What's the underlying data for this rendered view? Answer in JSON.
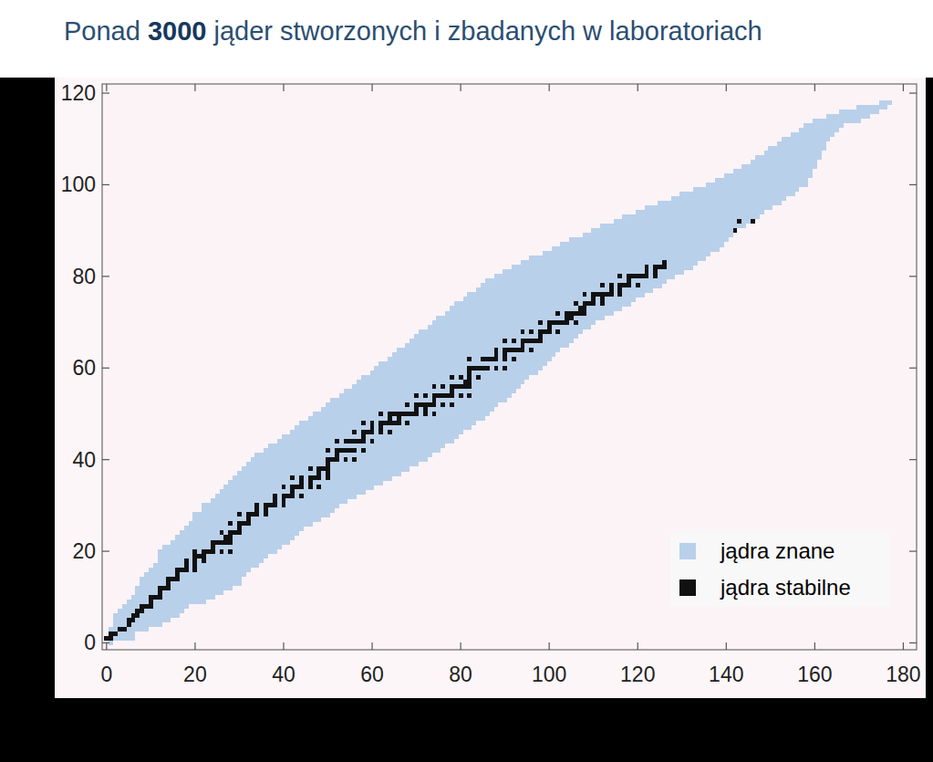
{
  "chart_data": {
    "type": "scatter",
    "title": "Ponad 3000 jąder stworzonych i zbadanych w laboratoriach",
    "xlim": [
      -1,
      183
    ],
    "ylim": [
      -1.5,
      122
    ],
    "xticks": [
      0,
      20,
      40,
      60,
      80,
      100,
      120,
      140,
      160,
      180
    ],
    "yticks": [
      0,
      20,
      40,
      60,
      80,
      100,
      120
    ],
    "grid": false,
    "legend": "lower right",
    "series": [
      {
        "name": "jądra znane",
        "color": "#b9d0ea",
        "type": "range",
        "marker": "square",
        "values": [
          0,
          1,
          2,
          3,
          4,
          5,
          6,
          7,
          8,
          9,
          10,
          11,
          12,
          13,
          14,
          15,
          16,
          17,
          18,
          19,
          20,
          21,
          22,
          23,
          24,
          25,
          26,
          27,
          28,
          29,
          30,
          31,
          32,
          33,
          34,
          35,
          36,
          37,
          38,
          39,
          40,
          41,
          42,
          43,
          44,
          45,
          46,
          47,
          48,
          49,
          50,
          51,
          52,
          53,
          54,
          55,
          56,
          57,
          58,
          59,
          60,
          61,
          62,
          63,
          64,
          65,
          66,
          67,
          68,
          69,
          70,
          71,
          72,
          73,
          74,
          75,
          76,
          77,
          78,
          79,
          80,
          81,
          82,
          83,
          84,
          85,
          86,
          87,
          88,
          89,
          90,
          91,
          92,
          93,
          94,
          95,
          96,
          97,
          98,
          99,
          100,
          101,
          102,
          103,
          104,
          105,
          106,
          107,
          108,
          109,
          110,
          111,
          112,
          113,
          114,
          115,
          116,
          117,
          118
        ],
        "n_min": [
          1,
          0,
          1,
          1,
          2,
          2,
          2,
          3,
          4,
          5,
          6,
          7,
          7,
          8,
          8,
          9,
          10,
          11,
          12,
          12,
          12,
          13,
          15,
          16,
          17,
          18,
          19,
          20,
          20,
          22,
          22,
          24,
          25,
          26,
          27,
          28,
          29,
          30,
          31,
          32,
          33,
          34,
          36,
          37,
          39,
          40,
          42,
          43,
          44,
          46,
          47,
          49,
          50,
          51,
          53,
          54,
          56,
          57,
          58,
          60,
          61,
          62,
          64,
          65,
          66,
          68,
          69,
          70,
          71,
          73,
          74,
          75,
          77,
          78,
          79,
          81,
          82,
          84,
          85,
          86,
          88,
          90,
          92,
          94,
          96,
          99,
          101,
          103,
          105,
          108,
          110,
          112,
          115,
          117,
          120,
          122,
          125,
          128,
          130,
          133,
          136,
          138,
          140,
          142,
          144,
          146,
          147,
          149,
          150,
          152,
          153,
          155,
          157,
          158,
          160,
          163,
          166,
          170,
          175
        ],
        "n_max": [
          1,
          6,
          6,
          9,
          12,
          14,
          16,
          17,
          18,
          22,
          24,
          26,
          28,
          30,
          30,
          31,
          32,
          34,
          35,
          36,
          38,
          39,
          41,
          42,
          43,
          44,
          46,
          48,
          50,
          51,
          52,
          54,
          56,
          58,
          60,
          62,
          64,
          66,
          68,
          70,
          72,
          73,
          75,
          76,
          78,
          79,
          80,
          82,
          83,
          85,
          86,
          87,
          88,
          90,
          91,
          92,
          93,
          94,
          95,
          97,
          98,
          99,
          100,
          101,
          102,
          104,
          105,
          106,
          107,
          109,
          110,
          112,
          114,
          116,
          118,
          119,
          121,
          123,
          125,
          126,
          128,
          130,
          132,
          133,
          135,
          136,
          138,
          139,
          140,
          141,
          142,
          144,
          146,
          147,
          148,
          150,
          152,
          153,
          155,
          156,
          158,
          158,
          159,
          159,
          160,
          160,
          161,
          161,
          162,
          162,
          163,
          164,
          165,
          166,
          170,
          172,
          174,
          176,
          177
        ]
      },
      {
        "name": "jądra stabilne",
        "color": "#111111",
        "type": "scatter",
        "marker": "square",
        "x": [
          0,
          1,
          1,
          2,
          3,
          4,
          5,
          5,
          6,
          6,
          7,
          7,
          8,
          8,
          9,
          10,
          10,
          10,
          11,
          12,
          12,
          12,
          13,
          14,
          14,
          14,
          15,
          16,
          16,
          16,
          17,
          18,
          20,
          18,
          20,
          18,
          20,
          22,
          20,
          21,
          22,
          20,
          22,
          23,
          24,
          26,
          28,
          24,
          24,
          25,
          26,
          27,
          28,
          27,
          28,
          26,
          28,
          29,
          30,
          30,
          28,
          30,
          31,
          32,
          32,
          30,
          32,
          33,
          34,
          36,
          34,
          36,
          34,
          36,
          37,
          38,
          40,
          38,
          40,
          38,
          40,
          41,
          42,
          44,
          42,
          40,
          42,
          43,
          44,
          46,
          48,
          44,
          46,
          42,
          44,
          46,
          47,
          48,
          50,
          48,
          50,
          46,
          48,
          49,
          50,
          50,
          50,
          51,
          52,
          54,
          56,
          52,
          50,
          52,
          53,
          54,
          55,
          56,
          58,
          52,
          54,
          55,
          56,
          57,
          58,
          60,
          58,
          56,
          58,
          59,
          60,
          62,
          64,
          60,
          62,
          58,
          60,
          62,
          63,
          64,
          65,
          66,
          68,
          64,
          66,
          62,
          64,
          65,
          66,
          67,
          68,
          69,
          70,
          72,
          74,
          70,
          72,
          68,
          70,
          71,
          72,
          73,
          74,
          76,
          78,
          74,
          70,
          72,
          74,
          75,
          76,
          77,
          78,
          80,
          82,
          78,
          74,
          76,
          78,
          79,
          80,
          81,
          82,
          81,
          82,
          78,
          80,
          82,
          84,
          82,
          82,
          83,
          84,
          85,
          86,
          88,
          90,
          82,
          85,
          86,
          87,
          88,
          90,
          92,
          88,
          90,
          88,
          90,
          91,
          92,
          93,
          94,
          96,
          94,
          90,
          92,
          94,
          95,
          96,
          97,
          98,
          98,
          94,
          96,
          98,
          99,
          100,
          102,
          100,
          98,
          100,
          101,
          102,
          103,
          104,
          106,
          104,
          105,
          102,
          104,
          105,
          106,
          107,
          108,
          107,
          108,
          106,
          108,
          109,
          110,
          112,
          110,
          112,
          108,
          110,
          111,
          112,
          113,
          114,
          116,
          114,
          116,
          112,
          114,
          116,
          117,
          118,
          120,
          118,
          116,
          118,
          119,
          120,
          121,
          122,
          124,
          122,
          124,
          122,
          124,
          125,
          126,
          126,
          142,
          143,
          146
        ],
        "values": [
          1,
          1,
          2,
          2,
          3,
          3,
          4,
          5,
          5,
          6,
          6,
          7,
          7,
          8,
          8,
          8,
          9,
          10,
          10,
          10,
          11,
          12,
          12,
          12,
          13,
          14,
          14,
          14,
          15,
          16,
          16,
          16,
          16,
          17,
          17,
          18,
          18,
          18,
          19,
          19,
          19,
          20,
          20,
          20,
          20,
          20,
          20,
          21,
          22,
          22,
          22,
          22,
          22,
          23,
          23,
          24,
          24,
          24,
          24,
          25,
          26,
          26,
          26,
          26,
          27,
          28,
          28,
          28,
          28,
          28,
          29,
          29,
          30,
          30,
          30,
          30,
          30,
          31,
          31,
          32,
          32,
          32,
          32,
          32,
          33,
          34,
          34,
          34,
          34,
          34,
          34,
          35,
          35,
          36,
          36,
          36,
          36,
          36,
          36,
          37,
          37,
          38,
          38,
          38,
          38,
          39,
          40,
          40,
          40,
          40,
          40,
          41,
          42,
          42,
          42,
          42,
          42,
          42,
          42,
          44,
          44,
          44,
          44,
          44,
          44,
          44,
          45,
          46,
          46,
          46,
          46,
          46,
          46,
          47,
          47,
          48,
          48,
          48,
          48,
          48,
          48,
          48,
          48,
          49,
          49,
          50,
          50,
          50,
          50,
          50,
          50,
          50,
          50,
          50,
          50,
          51,
          51,
          52,
          52,
          52,
          52,
          52,
          52,
          52,
          52,
          53,
          54,
          54,
          54,
          54,
          54,
          54,
          54,
          54,
          54,
          55,
          56,
          56,
          56,
          56,
          56,
          56,
          56,
          57,
          57,
          58,
          58,
          58,
          58,
          59,
          60,
          60,
          60,
          60,
          60,
          60,
          60,
          62,
          62,
          62,
          62,
          62,
          62,
          62,
          63,
          63,
          64,
          64,
          64,
          64,
          64,
          64,
          64,
          65,
          66,
          66,
          66,
          66,
          66,
          66,
          66,
          67,
          68,
          68,
          68,
          68,
          68,
          68,
          69,
          70,
          70,
          70,
          70,
          70,
          70,
          70,
          71,
          71,
          72,
          72,
          72,
          72,
          72,
          72,
          73,
          73,
          74,
          74,
          74,
          74,
          74,
          75,
          75,
          76,
          76,
          76,
          76,
          76,
          76,
          76,
          77,
          77,
          78,
          78,
          78,
          78,
          78,
          78,
          79,
          80,
          80,
          80,
          80,
          80,
          80,
          80,
          81,
          81,
          82,
          82,
          82,
          82,
          83,
          90,
          92,
          92
        ]
      }
    ]
  }
}
